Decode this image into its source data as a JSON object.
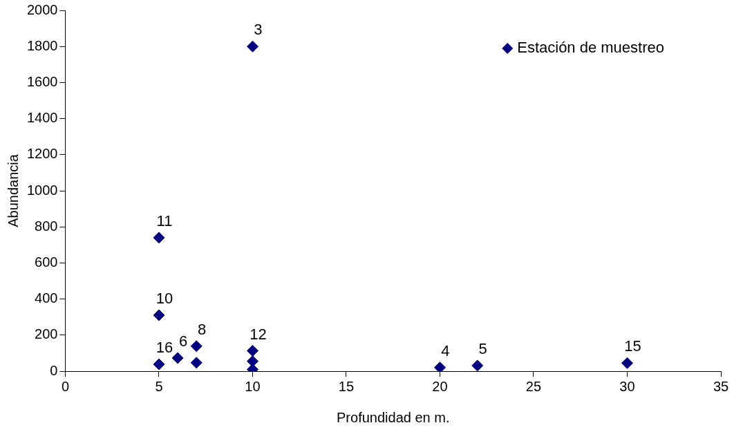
{
  "chart_data": {
    "type": "scatter",
    "xlabel": "Profundidad en m.",
    "ylabel": "Abundancia",
    "series": [
      {
        "name": "Estación de muestreo",
        "color": "#000080",
        "x": [
          10,
          5,
          5,
          5,
          6,
          7,
          7,
          10,
          10,
          10,
          20,
          22,
          30
        ],
        "values": [
          1800,
          740,
          310,
          38,
          73,
          139,
          47,
          113,
          55,
          10,
          20,
          31,
          45
        ]
      }
    ],
    "xlim": [
      0,
      35
    ],
    "xticks": [
      0,
      5,
      10,
      15,
      20,
      25,
      30,
      35
    ],
    "ylim": [
      0,
      2000
    ],
    "yticks": [
      0,
      200,
      400,
      600,
      800,
      1000,
      1200,
      1400,
      1600,
      1800,
      2000
    ],
    "grid": false,
    "legend": "top right",
    "marker": "diamond",
    "annotations": [
      {
        "text": "3",
        "x": 10,
        "y": 1800
      },
      {
        "text": "11",
        "x": 5,
        "y": 740
      },
      {
        "text": "10",
        "x": 5,
        "y": 310
      },
      {
        "text": "16",
        "x": 5,
        "y": 38
      },
      {
        "text": "6",
        "x": 6,
        "y": 73
      },
      {
        "text": "8",
        "x": 7,
        "y": 139
      },
      {
        "text": "12",
        "x": 10,
        "y": 113
      },
      {
        "text": "4",
        "x": 20,
        "y": 20
      },
      {
        "text": "5",
        "x": 22,
        "y": 31
      },
      {
        "text": "15",
        "x": 30,
        "y": 45
      }
    ]
  }
}
